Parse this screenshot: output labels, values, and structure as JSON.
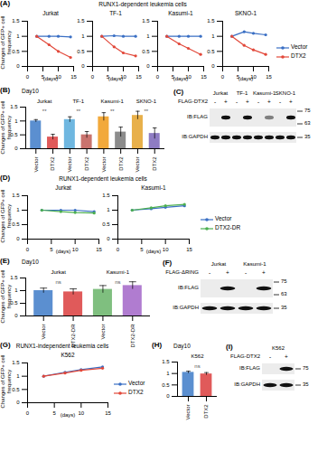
{
  "chart_data": [
    {
      "type": "line",
      "panel": "(A)",
      "title": "RUNX1-dependent leukemia cells",
      "y_label": "Changes of GFP+ cell frequency",
      "x_label": "(days)",
      "xlim": [
        0,
        15
      ],
      "xticks": [
        0,
        5,
        10,
        15
      ],
      "ylim": [
        0,
        1.5
      ],
      "yticks": [
        0,
        0.5,
        1,
        1.5
      ],
      "legend": "right",
      "subplots": [
        {
          "title": "Jurkat",
          "x": [
            3,
            7,
            10,
            14
          ],
          "series": [
            {
              "name": "Vector",
              "color": "#3a6fc4",
              "values": [
                1,
                1,
                1,
                0.98
              ]
            },
            {
              "name": "DTX2",
              "color": "#e2483a",
              "values": [
                1,
                0.72,
                0.5,
                0.3
              ]
            }
          ]
        },
        {
          "title": "TF-1",
          "x": [
            3,
            7,
            10,
            14
          ],
          "series": [
            {
              "name": "Vector",
              "color": "#3a6fc4",
              "values": [
                1,
                1.02,
                1,
                1
              ]
            },
            {
              "name": "DTX2",
              "color": "#e2483a",
              "values": [
                1,
                0.65,
                0.45,
                0.35
              ]
            }
          ]
        },
        {
          "title": "Kasumi-1",
          "x": [
            3,
            7,
            10,
            14
          ],
          "series": [
            {
              "name": "Vector",
              "color": "#3a6fc4",
              "values": [
                1,
                1,
                1,
                1
              ]
            },
            {
              "name": "DTX2",
              "color": "#e2483a",
              "values": [
                1,
                0.75,
                0.6,
                0.4
              ]
            }
          ]
        },
        {
          "title": "SKNO-1",
          "x": [
            3,
            7,
            10,
            14
          ],
          "series": [
            {
              "name": "Vector",
              "color": "#3a6fc4",
              "values": [
                1,
                1.15,
                1.1,
                1.05
              ]
            },
            {
              "name": "DTX2",
              "color": "#e2483a",
              "values": [
                1,
                0.7,
                0.55,
                0.4
              ]
            }
          ]
        }
      ]
    },
    {
      "type": "bar",
      "panel": "(B)",
      "title": "Day10",
      "y_label": "Changes of GFP+ cell frequency",
      "categories": [
        "Vector",
        "DTX2",
        "Vector",
        "DTX2",
        "Vector",
        "DTX2",
        "Vector",
        "DTX2"
      ],
      "groups": [
        "Jurkat",
        "TF-1",
        "Kasumi-1",
        "SKNO-1"
      ],
      "significance": [
        "**",
        "**",
        "**",
        "**"
      ],
      "values": [
        1.0,
        0.42,
        1.05,
        0.5,
        1.15,
        0.6,
        1.2,
        0.55
      ],
      "errors": [
        0.05,
        0.1,
        0.1,
        0.12,
        0.15,
        0.18,
        0.15,
        0.2
      ],
      "colors": [
        "#5b8fd0",
        "#e05a5a",
        "#6fb7e0",
        "#c9736e",
        "#f2a93b",
        "#8c8c8c",
        "#e8b04a",
        "#8e7cc3"
      ],
      "ylim": [
        0,
        1.5
      ],
      "yticks": [
        0,
        0.5,
        1,
        1.5
      ]
    },
    {
      "type": "line",
      "panel": "(D)",
      "title": "RUNX1-dependent leukemia cells",
      "y_label": "Changes of GFP+ cell frequency",
      "x_label": "(days)",
      "xlim": [
        0,
        15
      ],
      "xticks": [
        0,
        5,
        10,
        15
      ],
      "ylim": [
        0,
        1.5
      ],
      "yticks": [
        0,
        0.5,
        1,
        1.5
      ],
      "legend": "right",
      "subplots": [
        {
          "title": "Jurkat",
          "x": [
            3,
            7,
            10,
            14
          ],
          "series": [
            {
              "name": "Vector",
              "color": "#3a6fc4",
              "values": [
                1,
                1,
                1,
                0.95
              ]
            },
            {
              "name": "DTX2-DR",
              "color": "#4caf50",
              "values": [
                1,
                0.95,
                0.92,
                0.9
              ]
            }
          ]
        },
        {
          "title": "Kasumi-1",
          "x": [
            3,
            7,
            10,
            14
          ],
          "series": [
            {
              "name": "Vector",
              "color": "#3a6fc4",
              "values": [
                1,
                1.05,
                1.1,
                1.15
              ]
            },
            {
              "name": "DTX2-DR",
              "color": "#4caf50",
              "values": [
                1,
                1.08,
                1.15,
                1.2
              ]
            }
          ]
        }
      ]
    },
    {
      "type": "bar",
      "panel": "(E)",
      "title": "Day10",
      "y_label": "Changes of GFP+ cell frequency",
      "categories": [
        "Vector",
        "DTX2-DR",
        "Vector",
        "DTX2-DR"
      ],
      "groups": [
        "Jurkat",
        "Kasumi-1"
      ],
      "significance": [
        "ns",
        "ns"
      ],
      "values": [
        1.0,
        0.95,
        1.05,
        1.2
      ],
      "errors": [
        0.1,
        0.12,
        0.15,
        0.15
      ],
      "colors": [
        "#5b8fd0",
        "#e05a5a",
        "#7fbf7f",
        "#b07cd0"
      ],
      "ylim": [
        0,
        1.5
      ],
      "yticks": [
        0,
        0.5,
        1,
        1.5
      ]
    },
    {
      "type": "line",
      "panel": "(G)",
      "title": "RUNX1-independent leukemia cells",
      "y_label": "Changes of GFP+ cell frequency",
      "x_label": "(days)",
      "xlim": [
        0,
        15
      ],
      "xticks": [
        0,
        5,
        10,
        15
      ],
      "ylim": [
        0,
        1.5
      ],
      "yticks": [
        0,
        0.5,
        1,
        1.5
      ],
      "legend": "right",
      "subplots": [
        {
          "title": "K562",
          "x": [
            3,
            7,
            10,
            14
          ],
          "series": [
            {
              "name": "Vector",
              "color": "#3a6fc4",
              "values": [
                1,
                1.15,
                1.25,
                1.35
              ]
            },
            {
              "name": "DTX2",
              "color": "#e2483a",
              "values": [
                1,
                1.12,
                1.22,
                1.3
              ]
            }
          ]
        }
      ]
    },
    {
      "type": "bar",
      "panel": "(H)",
      "title": "Day10",
      "categories": [
        "Vector",
        "DTX2"
      ],
      "groups": [
        "K562"
      ],
      "significance": [
        "ns"
      ],
      "values": [
        1.05,
        0.98
      ],
      "errors": [
        0.05,
        0.06
      ],
      "colors": [
        "#5b8fd0",
        "#e05a5a"
      ],
      "ylim": [
        0,
        1.5
      ],
      "yticks": [
        0,
        0.5,
        1,
        1.5
      ]
    }
  ],
  "blots": [
    {
      "panel": "(C)",
      "treatment": "FLAG-DTX2",
      "groups": [
        "Jurkat",
        "TF-1",
        "Kasumi-1",
        "SKNO-1"
      ],
      "signs": [
        "-",
        "+",
        "-",
        "+",
        "-",
        "+",
        "-",
        "+"
      ],
      "blots": [
        {
          "label": "IB:FLAG",
          "markers": [
            75,
            63
          ],
          "bands": [
            0,
            1,
            0,
            1,
            0,
            0.5,
            0,
            1
          ]
        },
        {
          "label": "IB:GAPDH",
          "markers": [
            35
          ],
          "bands": [
            1,
            1,
            1,
            1,
            1,
            1,
            1,
            1
          ]
        }
      ]
    },
    {
      "panel": "(F)",
      "treatment": "FLAG-ΔRING",
      "groups": [
        "Jurkat",
        "Kasumi-1"
      ],
      "signs": [
        "-",
        "+",
        "-",
        "+"
      ],
      "blots": [
        {
          "label": "IB:FLAG",
          "markers": [
            75,
            63
          ],
          "bands": [
            0,
            1,
            0,
            1
          ]
        },
        {
          "label": "IB:GAPDH",
          "markers": [
            35
          ],
          "bands": [
            1,
            1,
            1,
            1
          ]
        }
      ]
    },
    {
      "panel": "(I)",
      "treatment": "FLAG-DTX2",
      "groups": [
        "K562"
      ],
      "signs": [
        "-",
        "+"
      ],
      "blots": [
        {
          "label": "IB:FLAG",
          "markers": [
            75
          ],
          "bands": [
            0,
            1
          ]
        },
        {
          "label": "IB:GAPDH",
          "markers": [
            35
          ],
          "bands": [
            1,
            1
          ]
        }
      ]
    }
  ]
}
